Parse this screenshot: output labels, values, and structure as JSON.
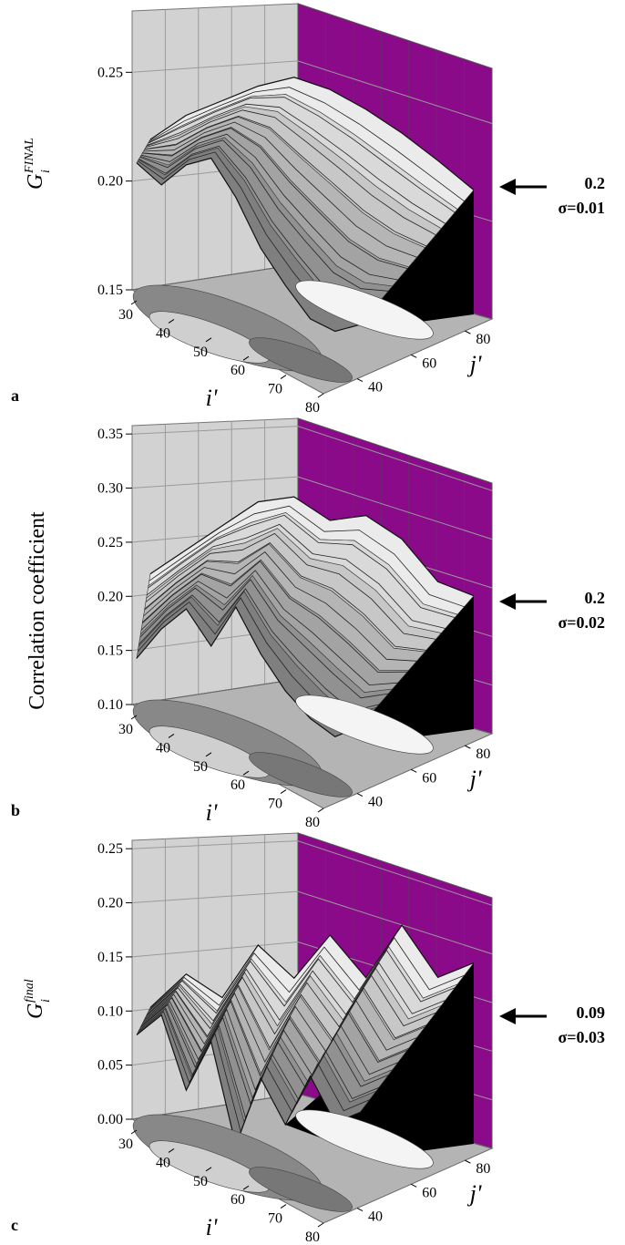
{
  "colors": {
    "back_wall": "#d2d2d2",
    "side_wall": "#8a0a8a",
    "grid": "#9a9a9a",
    "floor": "#b4b4b4",
    "surface_dark": "#000000"
  },
  "chart_data": [
    {
      "type": "surface",
      "panel_label": "a",
      "zlabel": "G_i^FINAL",
      "zlabel_main": "G",
      "zlabel_sub": "i",
      "zlabel_sup": "FINAL",
      "zlim": [
        0.15,
        0.27
      ],
      "z_ticks": [
        "0.15",
        "0.20",
        "0.25"
      ],
      "xlabel": "i'",
      "x_ticks": [
        "30",
        "40",
        "50",
        "60",
        "70",
        "80"
      ],
      "ylabel": "j'",
      "y_ticks": [
        "40",
        "60",
        "80"
      ],
      "projection_on_floor": true,
      "annotation": {
        "value": "0.2",
        "sigma": "σ=0.01"
      },
      "back_ridge_z": [
        0.22,
        0.235,
        0.245,
        0.255,
        0.262,
        0.258,
        0.25,
        0.24,
        0.228,
        0.215
      ],
      "front_ridge_z": [
        0.222,
        0.215,
        0.23,
        0.238,
        0.222,
        0.2,
        0.185,
        0.172,
        0.17,
        0.178
      ]
    },
    {
      "type": "surface",
      "panel_label": "b",
      "zlabel": "Correlation coefficient",
      "zlim": [
        0.1,
        0.35
      ],
      "z_ticks": [
        "0.10",
        "0.15",
        "0.20",
        "0.25",
        "0.30",
        "0.35"
      ],
      "xlabel": "i'",
      "x_ticks": [
        "30",
        "40",
        "50",
        "60",
        "70",
        "80"
      ],
      "ylabel": "j'",
      "y_ticks": [
        "40",
        "60",
        "80"
      ],
      "projection_on_floor": true,
      "annotation": {
        "value": "0.2",
        "sigma": "σ=0.02"
      },
      "back_ridge_z": [
        0.22,
        0.25,
        0.28,
        0.31,
        0.32,
        0.3,
        0.31,
        0.29,
        0.25,
        0.24
      ],
      "front_ridge_z": [
        0.16,
        0.2,
        0.23,
        0.2,
        0.25,
        0.21,
        0.18,
        0.16,
        0.15,
        0.17
      ]
    },
    {
      "type": "surface",
      "panel_label": "c",
      "zlabel": "G_i^final",
      "zlabel_main": "G",
      "zlabel_sub": "i",
      "zlabel_sup": "final",
      "zlim": [
        0.0,
        0.25
      ],
      "z_ticks": [
        "0.00",
        "0.05",
        "0.10",
        "0.15",
        "0.20",
        "0.25"
      ],
      "xlabel": "i'",
      "x_ticks": [
        "30",
        "40",
        "50",
        "60",
        "70",
        "80"
      ],
      "ylabel": "j'",
      "y_ticks": [
        "40",
        "60",
        "80"
      ],
      "projection_on_floor": true,
      "annotation": {
        "value": "0.09",
        "sigma": "σ=0.03"
      },
      "back_ridge_z": [
        0.1,
        0.14,
        0.12,
        0.18,
        0.15,
        0.2,
        0.16,
        0.22,
        0.17,
        0.19
      ],
      "front_ridge_z": [
        0.1,
        0.13,
        0.06,
        0.12,
        0.02,
        0.1,
        0.06,
        0.12,
        0.08,
        0.1
      ]
    }
  ]
}
